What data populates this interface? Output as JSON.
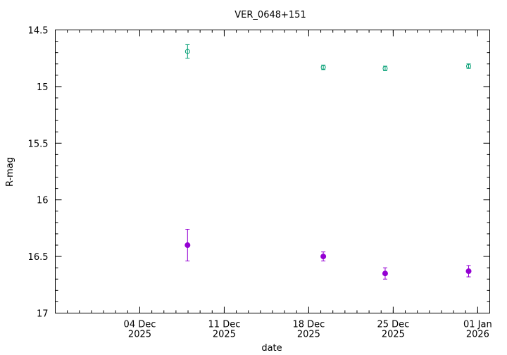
{
  "chart_data": {
    "type": "scatter",
    "title": "VER_0648+151",
    "xlabel": "date",
    "ylabel": "R-mag",
    "y_inverted": true,
    "ylim": [
      14.5,
      17.0
    ],
    "xlim": [
      "2025-11-27",
      "2026-01-02"
    ],
    "grid": false,
    "legend": "none",
    "y_ticks": [
      "14.5",
      "15",
      "15.5",
      "16",
      "16.5",
      "17"
    ],
    "x_ticks": [
      {
        "date": "2025-12-04",
        "line1": "04 Dec",
        "line2": "2025"
      },
      {
        "date": "2025-12-11",
        "line1": "11 Dec",
        "line2": "2025"
      },
      {
        "date": "2025-12-18",
        "line1": "18 Dec",
        "line2": "2025"
      },
      {
        "date": "2025-12-25",
        "line1": "25 Dec",
        "line2": "2025"
      },
      {
        "date": "2026-01-01",
        "line1": "01 Jan",
        "line2": "2026"
      }
    ],
    "series": [
      {
        "color": "#009e73",
        "marker": "open-circle",
        "points": [
          {
            "x": "2025-12-07 23:00",
            "y": 14.69,
            "err": 0.06
          },
          {
            "x": "2025-12-19 05:00",
            "y": 14.83,
            "err": 0.02
          },
          {
            "x": "2025-12-24 08:00",
            "y": 14.84,
            "err": 0.02
          },
          {
            "x": "2025-12-31 06:00",
            "y": 14.82,
            "err": 0.02
          }
        ]
      },
      {
        "color": "#9400d3",
        "marker": "filled-circle",
        "points": [
          {
            "x": "2025-12-07 23:00",
            "y": 16.4,
            "err": 0.14
          },
          {
            "x": "2025-12-19 05:00",
            "y": 16.5,
            "err": 0.04
          },
          {
            "x": "2025-12-24 08:00",
            "y": 16.65,
            "err": 0.05
          },
          {
            "x": "2025-12-31 06:00",
            "y": 16.63,
            "err": 0.05
          }
        ]
      }
    ]
  }
}
